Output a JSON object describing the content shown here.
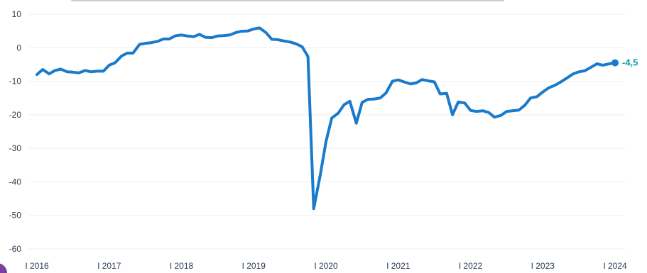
{
  "colors": {
    "line": "#1a7acb",
    "end_label": "#0f9aa8",
    "grid": "#eceff3",
    "badge": "#7b3fa0"
  },
  "chart_data": {
    "type": "line",
    "title": "",
    "xlabel": "",
    "ylabel": "",
    "ylim": [
      -60,
      10
    ],
    "y_ticks": [
      "10",
      "0",
      "-10",
      "-20",
      "-30",
      "-40",
      "-50",
      "-60"
    ],
    "y_tick_values": [
      10,
      0,
      -10,
      -20,
      -30,
      -40,
      -50,
      -60
    ],
    "x_ticks": [
      "I 2016",
      "I 2017",
      "I 2018",
      "I 2019",
      "I 2020",
      "I 2021",
      "I 2022",
      "I 2023",
      "I 2024"
    ],
    "x_tick_values": [
      2016,
      2017,
      2018,
      2019,
      2020,
      2021,
      2022,
      2023,
      2024
    ],
    "grid": true,
    "legend": "none",
    "end_label": "-4,5",
    "series": [
      {
        "x": [
          2016.0,
          2016.08,
          2016.17,
          2016.25,
          2016.33,
          2016.42,
          2016.5,
          2016.58,
          2016.67,
          2016.75,
          2016.83,
          2016.92,
          2017.0,
          2017.08,
          2017.17,
          2017.25,
          2017.33,
          2017.42,
          2017.5,
          2017.58,
          2017.67,
          2017.75,
          2017.83,
          2017.92,
          2018.0,
          2018.08,
          2018.17,
          2018.25,
          2018.33,
          2018.42,
          2018.5,
          2018.58,
          2018.67,
          2018.75,
          2018.83,
          2018.92,
          2019.0,
          2019.08,
          2019.17,
          2019.25,
          2019.33,
          2019.42,
          2019.5,
          2019.58,
          2019.67,
          2019.75,
          2019.83,
          2019.92,
          2020.0,
          2020.08,
          2020.17,
          2020.25,
          2020.33,
          2020.42,
          2020.5,
          2020.58,
          2020.67,
          2020.75,
          2020.83,
          2020.92,
          2021.0,
          2021.08,
          2021.17,
          2021.25,
          2021.33,
          2021.42,
          2021.5,
          2021.58,
          2021.67,
          2021.75,
          2021.83,
          2021.92,
          2022.0,
          2022.08,
          2022.17,
          2022.25,
          2022.33,
          2022.42,
          2022.5,
          2022.58,
          2022.67,
          2022.75,
          2022.83,
          2022.92,
          2023.0,
          2023.08,
          2023.17,
          2023.25,
          2023.33,
          2023.42,
          2023.5,
          2023.58,
          2023.67,
          2023.75,
          2023.83,
          2023.92,
          2024.0
        ],
        "values": [
          -8,
          -6.5,
          -7.8,
          -6.8,
          -6.4,
          -7.2,
          -7.3,
          -7.5,
          -6.8,
          -7.2,
          -7,
          -7,
          -5.2,
          -4.5,
          -2.5,
          -1.6,
          -1.6,
          1,
          1.3,
          1.5,
          1.9,
          2.6,
          2.6,
          3.6,
          3.8,
          3.5,
          3.3,
          4,
          3.1,
          3,
          3.5,
          3.6,
          3.8,
          4.5,
          4.9,
          5,
          5.6,
          5.9,
          4.5,
          2.5,
          2.4,
          2.0,
          1.7,
          1.2,
          0.3,
          -2.6,
          -48,
          -38,
          -28,
          -21,
          -19.5,
          -17,
          -16,
          -22.5,
          -16.3,
          -15.4,
          -15.3,
          -15,
          -13.5,
          -10,
          -9.6,
          -10.2,
          -10.8,
          -10.5,
          -9.5,
          -9.9,
          -10.2,
          -13.8,
          -13.6,
          -20,
          -16.2,
          -16.5,
          -18.7,
          -19,
          -18.8,
          -19.3,
          -20.7,
          -20.2,
          -19,
          -18.8,
          -18.6,
          -17.2,
          -15,
          -14.6,
          -13.2,
          -12,
          -11.2,
          -10.2,
          -9.1,
          -7.8,
          -7.2,
          -6.9,
          -5.8,
          -4.8,
          -5.2,
          -4.8,
          -4.5
        ]
      }
    ]
  }
}
